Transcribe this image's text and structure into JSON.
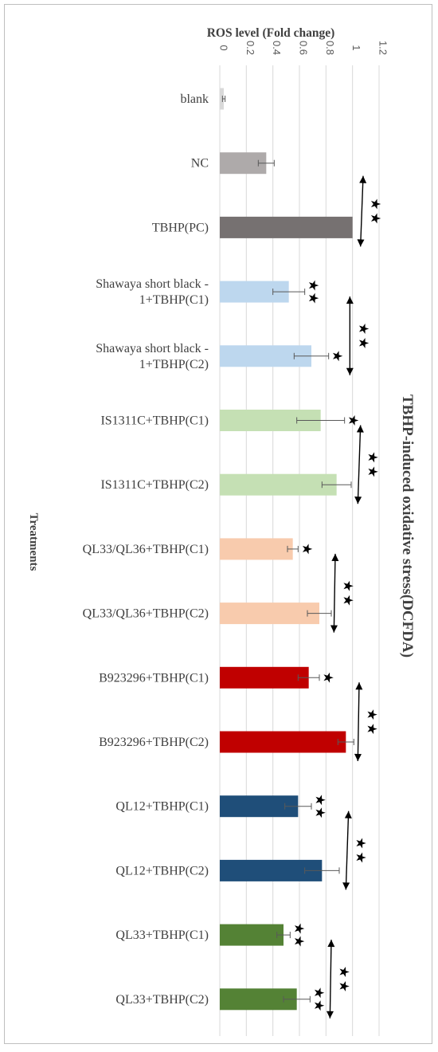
{
  "chart_data": {
    "type": "bar",
    "orientation": "horizontal",
    "title": "TBHP-induced oxidative stress(DCFDA)",
    "xlabel": "ROS level  (Fold change)",
    "ylabel": "Treatments",
    "xlim": [
      0,
      1.2
    ],
    "xticks": [
      "0",
      "0.2",
      "0.4",
      "0.6",
      "0.8",
      "1",
      "1.2"
    ],
    "grid": true,
    "categories": [
      "blank",
      "NC",
      "TBHP(PC)",
      "Shawaya short black - 1+TBHP(C1)",
      "Shawaya short black - 1+TBHP(C2)",
      "IS1311C+TBHP(C1)",
      "IS1311C+TBHP(C2)",
      "QL33/QL36+TBHP(C1)",
      "QL33/QL36+TBHP(C2)",
      "B923296+TBHP(C1)",
      "B923296+TBHP(C2)",
      "QL12+TBHP(C1)",
      "QL12+TBHP(C2)",
      "QL33+TBHP(C1)",
      "QL33+TBHP(C2)"
    ],
    "values": [
      0.03,
      0.35,
      1.0,
      0.52,
      0.69,
      0.76,
      0.88,
      0.55,
      0.75,
      0.67,
      0.95,
      0.59,
      0.77,
      0.48,
      0.58
    ],
    "errors": [
      0.01,
      0.06,
      0.0,
      0.12,
      0.13,
      0.18,
      0.11,
      0.04,
      0.09,
      0.08,
      0.06,
      0.1,
      0.13,
      0.05,
      0.1
    ],
    "colors": [
      "#d9d9d9",
      "#aeaaaa",
      "#767171",
      "#bdd7ee",
      "#bdd7ee",
      "#c5e0b4",
      "#c5e0b4",
      "#f8cbad",
      "#f8cbad",
      "#c00000",
      "#c00000",
      "#1f4e79",
      "#1f4e79",
      "#548235",
      "#548235"
    ],
    "significance": {
      "vs_PC": [
        "",
        "",
        "",
        "★★",
        "★",
        "★",
        "",
        "★",
        "",
        "★",
        "",
        "★★",
        "",
        "★★",
        "★★"
      ],
      "C1_vs_C2_brackets": [
        {
          "between": [
            "NC",
            "TBHP(PC)"
          ],
          "label": "★★"
        },
        {
          "between": [
            "Shawaya short black - 1+TBHP(C1)",
            "Shawaya short black - 1+TBHP(C2)"
          ],
          "label": "★★"
        },
        {
          "between": [
            "IS1311C+TBHP(C1)",
            "IS1311C+TBHP(C2)"
          ],
          "label": "★★"
        },
        {
          "between": [
            "QL33/QL36+TBHP(C1)",
            "QL33/QL36+TBHP(C2)"
          ],
          "label": "★★"
        },
        {
          "between": [
            "B923296+TBHP(C1)",
            "B923296+TBHP(C2)"
          ],
          "label": "★★"
        },
        {
          "between": [
            "QL12+TBHP(C1)",
            "QL12+TBHP(C2)"
          ],
          "label": "★★"
        },
        {
          "between": [
            "QL33+TBHP(C1)",
            "QL33+TBHP(C2)"
          ],
          "label": "★★"
        }
      ]
    }
  }
}
